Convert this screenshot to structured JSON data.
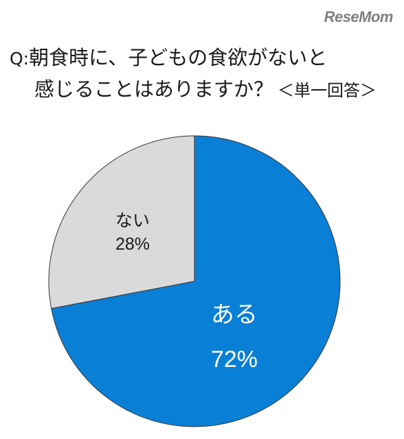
{
  "logo": "ReseMom",
  "question": {
    "prefix": "Q:",
    "line1": "朝食時に、子どもの食欲がないと",
    "line2": "感じることはありますか？",
    "note": "＜単一回答＞"
  },
  "chart_data": {
    "type": "pie",
    "categories": [
      "ある",
      "ない"
    ],
    "values": [
      72,
      28
    ],
    "value_labels": [
      "72%",
      "28%"
    ],
    "colors": [
      "#0a7fd6",
      "#dadada"
    ],
    "label_colors": [
      "#ffffff",
      "#1a1a1a"
    ],
    "start": "12 o'clock",
    "direction": "clockwise"
  }
}
